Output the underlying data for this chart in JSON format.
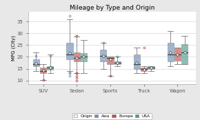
{
  "title": "Mileage by Type and Origin",
  "ylabel": "MPG (City)",
  "xlabels": [
    "SUV",
    "Sedan",
    "Sports",
    "Truck",
    "Wagon"
  ],
  "ylim": [
    8.5,
    39
  ],
  "yticks": [
    10,
    15,
    20,
    25,
    30,
    35
  ],
  "colors": {
    "Asia": "#6b8fbe",
    "Europe": "#c0504d",
    "USA": "#4e9b8f"
  },
  "box_data": {
    "SUV": {
      "Asia": {
        "mean": 17.2,
        "med": 17,
        "q1": 16,
        "q3": 19,
        "whislo": 14,
        "whishi": 22,
        "fliers_hi": [
          20.5
        ],
        "fliers_lo": []
      },
      "Europe": {
        "mean": 14.2,
        "med": 14,
        "q1": 13,
        "q3": 15.5,
        "whislo": 10.2,
        "whishi": 17,
        "fliers_hi": [],
        "fliers_lo": [
          10.2
        ]
      },
      "USA": {
        "mean": 15.5,
        "med": 15.5,
        "q1": 14.5,
        "q3": 16,
        "whislo": 13,
        "whishi": 21,
        "fliers_hi": [
          20.5
        ],
        "fliers_lo": []
      }
    },
    "Sedan": {
      "Asia": {
        "mean": 21.5,
        "med": 21,
        "q1": 19,
        "q3": 26,
        "whislo": 14,
        "whishi": 36,
        "fliers_hi": [
          37.5
        ],
        "fliers_lo": [
          12,
          13,
          13.5
        ]
      },
      "Europe": {
        "mean": 19.5,
        "med": 19.5,
        "q1": 18,
        "q3": 22,
        "whislo": 13,
        "whishi": 28.5,
        "fliers_hi": [
          28.8,
          29
        ],
        "fliers_lo": [
          11,
          12,
          13,
          13,
          10
        ]
      },
      "USA": {
        "mean": 20,
        "med": 20,
        "q1": 18,
        "q3": 21.5,
        "whislo": 13,
        "whishi": 27,
        "fliers_hi": [],
        "fliers_lo": []
      }
    },
    "Sports": {
      "Asia": {
        "mean": 20.5,
        "med": 20.5,
        "q1": 18,
        "q3": 23,
        "whislo": 15,
        "whishi": 26,
        "fliers_hi": [
          26
        ],
        "fliers_lo": []
      },
      "Europe": {
        "mean": 19,
        "med": 19.5,
        "q1": 17,
        "q3": 20,
        "whislo": 12,
        "whishi": 20,
        "fliers_hi": [],
        "fliers_lo": [
          12
        ]
      },
      "USA": {
        "mean": 17.5,
        "med": 17.5,
        "q1": 17,
        "q3": 18,
        "whislo": 16,
        "whishi": 20,
        "fliers_hi": [
          20
        ],
        "fliers_lo": []
      }
    },
    "Truck": {
      "Asia": {
        "mean": 17.5,
        "med": 17,
        "q1": 15,
        "q3": 21,
        "whislo": 13,
        "whishi": 24,
        "fliers_hi": [],
        "fliers_lo": []
      },
      "Europe": {
        "mean": 14.5,
        "med": 15,
        "q1": 14,
        "q3": 15.5,
        "whislo": 13,
        "whishi": 16,
        "fliers_hi": [
          24
        ],
        "fliers_lo": []
      },
      "USA": {
        "mean": 15.5,
        "med": 15.5,
        "q1": 15,
        "q3": 16,
        "whislo": 14,
        "whishi": 16,
        "fliers_hi": [],
        "fliers_lo": []
      }
    },
    "Wagon": {
      "Asia": {
        "mean": 22,
        "med": 21,
        "q1": 18,
        "q3": 26,
        "whislo": 16,
        "whishi": 31,
        "fliers_hi": [],
        "fliers_lo": []
      },
      "Europe": {
        "mean": 21,
        "med": 21,
        "q1": 18.5,
        "q3": 24,
        "whislo": 17,
        "whishi": 24,
        "fliers_hi": [],
        "fliers_lo": []
      },
      "USA": {
        "mean": 22,
        "med": 22,
        "q1": 17,
        "q3": 25.5,
        "whislo": 17,
        "whishi": 29,
        "fliers_hi": [],
        "fliers_lo": []
      }
    }
  },
  "fig_bg": "#e8e8e8",
  "plot_bg": "#ffffff"
}
